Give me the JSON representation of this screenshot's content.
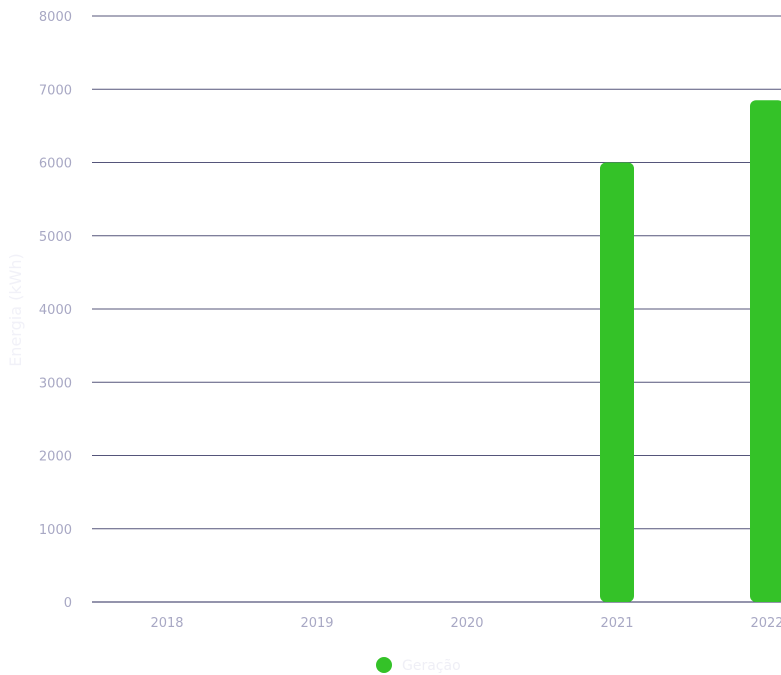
{
  "chart_data": {
    "type": "bar",
    "categories": [
      "2018",
      "2019",
      "2020",
      "2021",
      "2022"
    ],
    "series": [
      {
        "name": "Geração",
        "color": "#34c228",
        "values": [
          0,
          0,
          0,
          6000,
          6850
        ]
      }
    ],
    "ylabel": "Energia (kWh)",
    "xlabel": "",
    "ylim": [
      0,
      8000
    ],
    "yticks": [
      0,
      1000,
      2000,
      3000,
      4000,
      5000,
      6000,
      7000,
      8000
    ],
    "grid": true,
    "legend_position": "bottom-center"
  }
}
